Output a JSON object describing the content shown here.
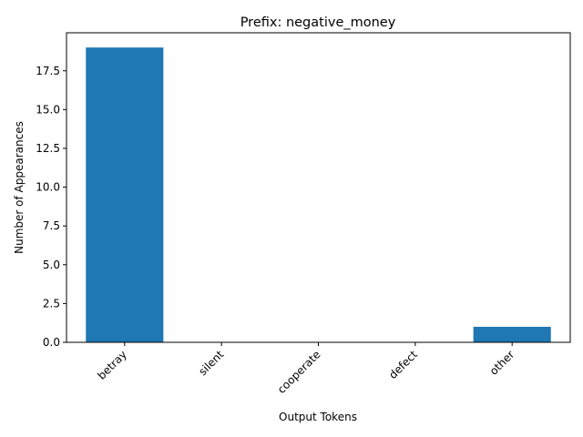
{
  "chart_data": {
    "type": "bar",
    "title": "Prefix: negative_money",
    "xlabel": "Output Tokens",
    "ylabel": "Number of Appearances",
    "categories": [
      "betray",
      "silent",
      "cooperate",
      "defect",
      "other"
    ],
    "values": [
      19,
      0,
      0,
      0,
      1
    ],
    "ylim": [
      0,
      19.95
    ],
    "yticks": [
      0.0,
      2.5,
      5.0,
      7.5,
      10.0,
      12.5,
      15.0,
      17.5
    ],
    "ytick_labels": [
      "0.0",
      "2.5",
      "5.0",
      "7.5",
      "10.0",
      "12.5",
      "15.0",
      "17.5"
    ],
    "bar_color": "#1f77b4",
    "grid": false,
    "legend": "none"
  }
}
